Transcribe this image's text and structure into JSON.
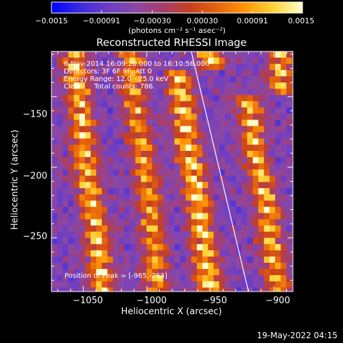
{
  "colorbar": {
    "ticks": [
      "−0.0015",
      "−0.00091",
      "−0.00030",
      "0.00030",
      "0.00091",
      "0.0015"
    ],
    "units": "(photons cm⁻² s⁻¹ asec⁻²)",
    "colors": [
      "#0000ff",
      "#3a2adf",
      "#6a3cc8",
      "#8a48a6",
      "#a53d6e",
      "#c8401e",
      "#e8660c",
      "#ff9a08",
      "#ffd63a",
      "#ffffd0"
    ]
  },
  "image_title": "Reconstructed RHESSI Image",
  "annotations": {
    "line1": "6-Nov-2014 16:09:20.000 to 16:10:56.000",
    "line2": "Detectors: 3F 6F 9F, Att 0",
    "line3": "Energy Range: 12.0 - 25.0 keV",
    "line4": "Clean     Total counts: 786.",
    "peak": "Position of Peak = [-965,-263]"
  },
  "footer": "19-May-2022 04:15",
  "chart_data": {
    "type": "heatmap",
    "title": "Reconstructed RHESSI Image",
    "xlabel": "Heliocentric X (arcsec)",
    "ylabel": "Heliocentric Y (arcsec)",
    "xlim": [
      -1075,
      -885
    ],
    "ylim": [
      -288,
      -118
    ],
    "xticks": [
      -1050,
      -1000,
      -950,
      -900
    ],
    "yticks": [
      -250,
      -200,
      -150
    ],
    "xtick_labels": [
      "−1050",
      "−1000",
      "−950",
      "−900"
    ],
    "ytick_labels": [
      "−250",
      "−200",
      "−150"
    ],
    "colorbar_range": [
      -0.0015,
      0.0015
    ],
    "limb_line": [
      [
        -965,
        -118
      ],
      [
        -920,
        -288
      ]
    ],
    "peak": [
      -965,
      -263
    ],
    "bright_bands": [
      {
        "x": [
          [
            -1058,
            -118
          ],
          [
            -1052,
            -160
          ],
          [
            -1048,
            -200
          ],
          [
            -1040,
            -240
          ],
          [
            -1035,
            -288
          ]
        ],
        "intensity": 0.95
      },
      {
        "x": [
          [
            -1012,
            -120
          ],
          [
            -1008,
            -160
          ],
          [
            -1002,
            -200
          ],
          [
            -996,
            -240
          ],
          [
            -992,
            -288
          ]
        ],
        "intensity": 0.8
      },
      {
        "x": [
          [
            -975,
            -130
          ],
          [
            -970,
            -175
          ],
          [
            -960,
            -220
          ],
          [
            -955,
            -260
          ],
          [
            -950,
            -288
          ]
        ],
        "intensity": 1.0
      },
      {
        "x": [
          [
            -920,
            -150
          ],
          [
            -915,
            -190
          ],
          [
            -905,
            -230
          ],
          [
            -900,
            -270
          ],
          [
            -895,
            -288
          ]
        ],
        "intensity": 0.9
      }
    ],
    "grid": false,
    "legend": "colorbar top"
  }
}
